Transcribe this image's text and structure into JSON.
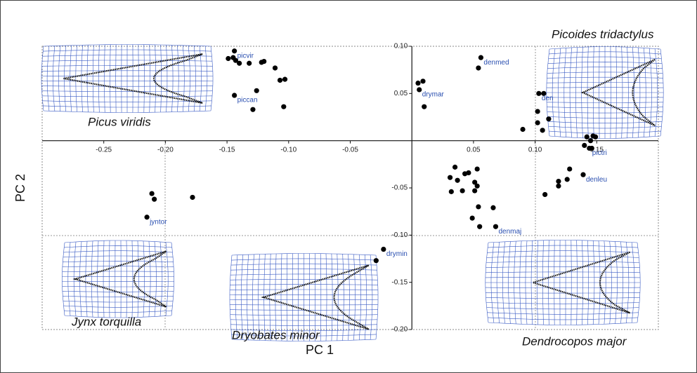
{
  "chart_data": {
    "type": "scatter",
    "x_label": "PC 1",
    "y_label": "PC 2",
    "xlim": [
      -0.3,
      0.2
    ],
    "ylim": [
      -0.2,
      0.1
    ],
    "xticks": [
      {
        "value": -0.25,
        "label": "-0.25"
      },
      {
        "value": -0.2,
        "label": "-0.20"
      },
      {
        "value": -0.15,
        "label": "-0.15"
      },
      {
        "value": -0.1,
        "label": "-0.10"
      },
      {
        "value": -0.05,
        "label": "-0.05"
      },
      {
        "value": 0.05,
        "label": "0.05"
      },
      {
        "value": 0.1,
        "label": "0.10"
      },
      {
        "value": 0.15,
        "label": "0.15"
      }
    ],
    "yticks": [
      {
        "value": 0.1,
        "label": "0.10"
      },
      {
        "value": 0.05,
        "label": "0.05"
      },
      {
        "value": -0.05,
        "label": "-0.05"
      },
      {
        "value": -0.1,
        "label": "-0.10"
      },
      {
        "value": -0.15,
        "label": "-0.15"
      },
      {
        "value": -0.2,
        "label": "-0.20"
      }
    ],
    "color": "#000000",
    "label_color": "#2a4fb0",
    "series": [
      {
        "name": "picvir",
        "x": [
          -0.144,
          -0.149,
          -0.145,
          -0.143,
          -0.14,
          -0.132,
          -0.122,
          -0.12,
          -0.111,
          -0.107,
          -0.103
        ],
        "y": [
          0.095,
          0.087,
          0.088,
          0.085,
          0.082,
          0.082,
          0.083,
          0.084,
          0.077,
          0.064,
          0.065
        ]
      },
      {
        "name": "piccan",
        "x": [
          -0.144,
          -0.126,
          -0.129,
          -0.104
        ],
        "y": [
          0.048,
          0.053,
          0.033,
          0.036
        ]
      },
      {
        "name": "jyntor",
        "x": [
          -0.215,
          -0.211,
          -0.209,
          -0.178
        ],
        "y": [
          -0.081,
          -0.056,
          -0.062,
          -0.06
        ]
      },
      {
        "name": "drymin",
        "x": [
          -0.023,
          -0.029
        ],
        "y": [
          -0.115,
          -0.127
        ]
      },
      {
        "name": "drymar",
        "x": [
          0.006,
          0.005,
          0.009,
          0.01
        ],
        "y": [
          0.054,
          0.061,
          0.063,
          0.036
        ]
      },
      {
        "name": "denmed",
        "x": [
          0.056,
          0.054
        ],
        "y": [
          0.088,
          0.077
        ]
      },
      {
        "name": "den",
        "x": [
          0.103,
          0.107,
          0.102,
          0.102,
          0.111,
          0.09,
          0.106
        ],
        "y": [
          0.05,
          0.05,
          0.031,
          0.019,
          0.023,
          0.012,
          0.011
        ]
      },
      {
        "name": "pictri",
        "x": [
          0.144,
          0.142,
          0.145,
          0.147,
          0.149,
          0.14,
          0.146
        ],
        "y": [
          -0.008,
          0.004,
          0.0,
          0.005,
          0.004,
          -0.005,
          -0.008
        ]
      },
      {
        "name": "denleu",
        "x": [
          0.139,
          0.128,
          0.119,
          0.119,
          0.126,
          0.108
        ],
        "y": [
          -0.036,
          -0.03,
          -0.043,
          -0.048,
          -0.041,
          -0.057
        ]
      },
      {
        "name": "denmaj",
        "x": [
          0.068,
          0.035,
          0.031,
          0.037,
          0.043,
          0.046,
          0.053,
          0.032,
          0.041,
          0.051,
          0.051,
          0.053,
          0.054,
          0.049,
          0.066,
          0.055
        ],
        "y": [
          -0.091,
          -0.028,
          -0.039,
          -0.042,
          -0.035,
          -0.034,
          -0.03,
          -0.054,
          -0.053,
          -0.044,
          -0.053,
          -0.048,
          -0.07,
          -0.082,
          -0.071,
          -0.091
        ]
      }
    ],
    "annotations": [
      "Picus viridis",
      "Picoides tridactylus",
      "Jynx torquilla",
      "Dryobates minor",
      "Dendrocopos major"
    ]
  }
}
